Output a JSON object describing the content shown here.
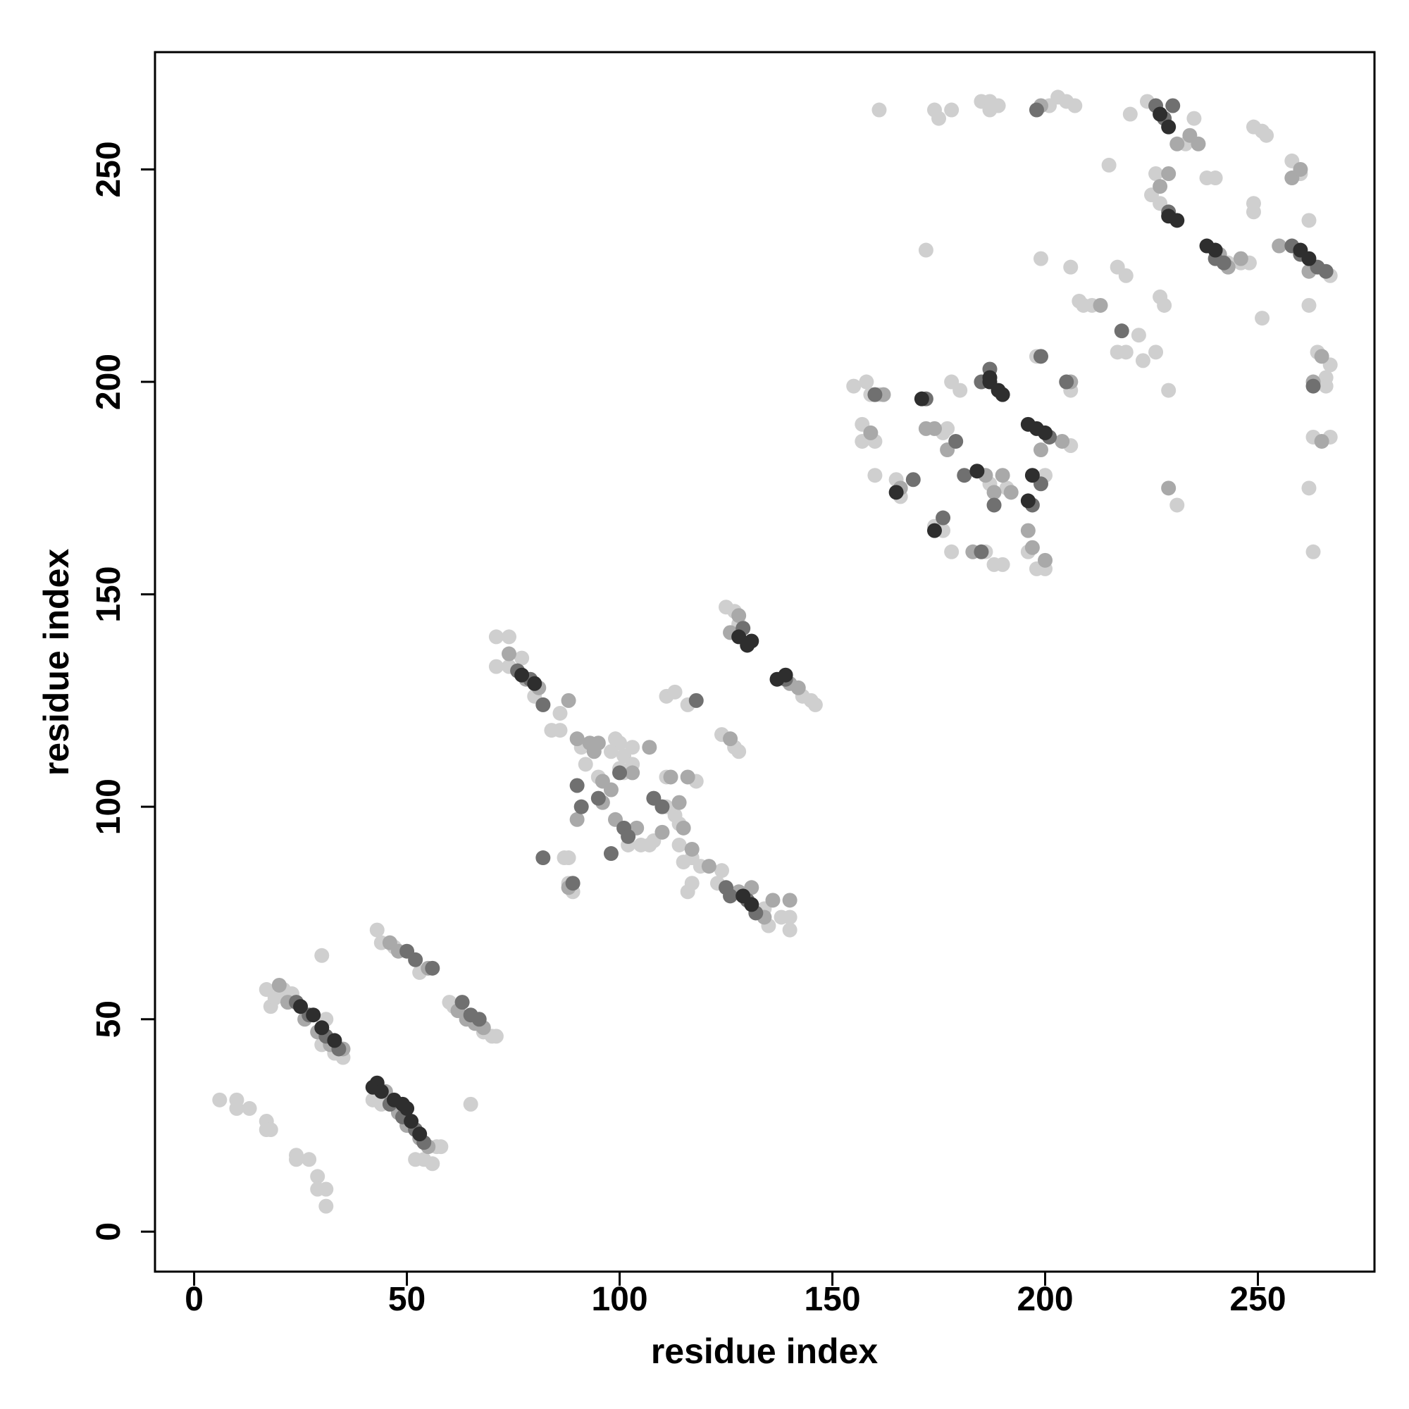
{
  "chart_data": {
    "type": "scatter",
    "x_label": "residue index",
    "y_label": "residue index",
    "xlim": [
      -9.2,
      277.4
    ],
    "ylim": [
      -9.4,
      277.6
    ],
    "xticks": [
      0,
      50,
      100,
      150,
      200,
      250
    ],
    "yticks": [
      0,
      50,
      100,
      150,
      200,
      250
    ],
    "series": [
      {
        "color": "#cfcfcf",
        "x": [
          17,
          18,
          19,
          21,
          23,
          30,
          31,
          33,
          35,
          30,
          6,
          10,
          10,
          13,
          17,
          17,
          18,
          24,
          24,
          27,
          29,
          29,
          31,
          31,
          42,
          44,
          52,
          54,
          56,
          57,
          58,
          65,
          43,
          44,
          47,
          53,
          70,
          71,
          68,
          60,
          61,
          71,
          71,
          74,
          74,
          77,
          80,
          82,
          84,
          86,
          86,
          88,
          88,
          89,
          91,
          92,
          95,
          98,
          100,
          100,
          101,
          101,
          103,
          103,
          107,
          108,
          111,
          111,
          113,
          114,
          115,
          116,
          117,
          111,
          113,
          116,
          124,
          127,
          128,
          124,
          123,
          134,
          135,
          138,
          140,
          140,
          143,
          145,
          146,
          125,
          127,
          128,
          118,
          114,
          119,
          117,
          87,
          99,
          102,
          105,
          155,
          158,
          159,
          157,
          157,
          160,
          161,
          160,
          165,
          166,
          172,
          174,
          176,
          178,
          178,
          177,
          176,
          180,
          161,
          174,
          175,
          178,
          185,
          187,
          187,
          186,
          188,
          190,
          187,
          191,
          196,
          198,
          199,
          200,
          200,
          198,
          201,
          203,
          205,
          207,
          206,
          206,
          206,
          206,
          208,
          209,
          211,
          215,
          217,
          217,
          219,
          219,
          220,
          222,
          224,
          223,
          225,
          226,
          227,
          228,
          229,
          231,
          233,
          235,
          238,
          240,
          243,
          246,
          248,
          249,
          251,
          252,
          251,
          258,
          260,
          262,
          262,
          262,
          263,
          263,
          264,
          266,
          267,
          267,
          266,
          267,
          249,
          249,
          189,
          226,
          227
        ],
        "y": [
          57,
          53,
          55,
          57,
          56,
          44,
          50,
          42,
          41,
          65,
          31,
          31,
          29,
          29,
          26,
          24,
          24,
          18,
          17,
          17,
          13,
          10,
          10,
          6,
          31,
          30,
          17,
          17,
          16,
          20,
          20,
          30,
          71,
          68,
          67,
          61,
          46,
          46,
          47,
          54,
          53,
          140,
          133,
          140,
          133,
          135,
          126,
          124,
          118,
          122,
          118,
          88,
          82,
          80,
          114,
          110,
          107,
          113,
          115,
          109,
          112,
          108,
          114,
          110,
          91,
          92,
          107,
          100,
          98,
          96,
          87,
          80,
          82,
          126,
          127,
          124,
          117,
          114,
          113,
          85,
          82,
          76,
          72,
          74,
          71,
          74,
          126,
          125,
          124,
          147,
          146,
          143,
          106,
          91,
          86,
          88,
          88,
          116,
          91,
          91,
          199,
          200,
          197,
          190,
          186,
          186,
          197,
          178,
          177,
          173,
          231,
          166,
          165,
          200,
          160,
          189,
          188,
          198,
          264,
          264,
          262,
          264,
          266,
          266,
          264,
          160,
          157,
          157,
          176,
          175,
          160,
          156,
          229,
          178,
          156,
          206,
          265,
          267,
          266,
          265,
          200,
          198,
          185,
          227,
          219,
          218,
          218,
          251,
          227,
          207,
          207,
          225,
          263,
          211,
          266,
          205,
          244,
          249,
          242,
          218,
          198,
          171,
          256,
          262,
          248,
          248,
          228,
          228,
          228,
          260,
          259,
          258,
          215,
          252,
          249,
          238,
          218,
          175,
          160,
          187,
          207,
          201,
          204,
          187,
          199,
          225,
          240,
          242,
          265,
          207,
          220
        ]
      },
      {
        "color": "#a9a9a9",
        "x": [
          20,
          22,
          26,
          29,
          32,
          35,
          45,
          48,
          50,
          53,
          55,
          46,
          48,
          55,
          62,
          64,
          66,
          68,
          74,
          78,
          81,
          88,
          90,
          93,
          94,
          90,
          95,
          98,
          99,
          103,
          104,
          107,
          110,
          112,
          116,
          114,
          115,
          117,
          121,
          126,
          128,
          131,
          134,
          136,
          140,
          126,
          128,
          140,
          142,
          88,
          96,
          96,
          159,
          162,
          166,
          172,
          174,
          177,
          183,
          186,
          188,
          190,
          192,
          196,
          197,
          200,
          199,
          199,
          204,
          206,
          213,
          227,
          229,
          231,
          234,
          236,
          241,
          243,
          255,
          258,
          260,
          262,
          263,
          265,
          265,
          246,
          229
        ],
        "y": [
          58,
          54,
          50,
          47,
          44,
          43,
          33,
          28,
          25,
          22,
          20,
          68,
          66,
          62,
          52,
          50,
          49,
          48,
          136,
          130,
          128,
          125,
          116,
          115,
          113,
          97,
          115,
          104,
          97,
          108,
          95,
          114,
          94,
          107,
          107,
          101,
          95,
          90,
          86,
          116,
          80,
          81,
          74,
          78,
          78,
          141,
          145,
          129,
          128,
          81,
          101,
          106,
          188,
          197,
          175,
          189,
          189,
          184,
          160,
          178,
          174,
          178,
          174,
          165,
          161,
          158,
          184,
          265,
          186,
          200,
          218,
          246,
          249,
          256,
          258,
          256,
          230,
          227,
          232,
          248,
          250,
          226,
          200,
          206,
          186,
          229,
          175
        ]
      },
      {
        "color": "#707070",
        "x": [
          24,
          27,
          31,
          34,
          46,
          49,
          52,
          54,
          50,
          52,
          56,
          63,
          65,
          67,
          76,
          79,
          82,
          89,
          90,
          91,
          95,
          98,
          100,
          101,
          102,
          108,
          110,
          125,
          126,
          130,
          132,
          129,
          139,
          82,
          118,
          160,
          169,
          172,
          176,
          179,
          181,
          185,
          187,
          188,
          197,
          199,
          199,
          201,
          205,
          218,
          226,
          228,
          229,
          230,
          240,
          242,
          258,
          260,
          264,
          266,
          263,
          198,
          185
        ],
        "y": [
          54,
          51,
          46,
          43,
          30,
          27,
          24,
          21,
          66,
          64,
          62,
          54,
          51,
          50,
          132,
          130,
          124,
          82,
          105,
          100,
          102,
          89,
          108,
          95,
          93,
          102,
          100,
          81,
          79,
          78,
          75,
          142,
          130,
          88,
          125,
          197,
          177,
          196,
          168,
          186,
          178,
          200,
          203,
          171,
          171,
          176,
          206,
          187,
          200,
          212,
          265,
          262,
          240,
          265,
          229,
          228,
          232,
          230,
          227,
          226,
          199,
          264,
          160
        ]
      },
      {
        "color": "#2e2e2e",
        "x": [
          25,
          28,
          30,
          33,
          42,
          43,
          44,
          47,
          50,
          51,
          53,
          49,
          77,
          80,
          128,
          130,
          131,
          137,
          139,
          129,
          131,
          165,
          171,
          174,
          184,
          187,
          189,
          190,
          196,
          198,
          200,
          197,
          227,
          229,
          231,
          229,
          238,
          240,
          260,
          262,
          196,
          187
        ],
        "y": [
          53,
          51,
          48,
          45,
          34,
          35,
          33,
          31,
          29,
          26,
          23,
          30,
          131,
          129,
          140,
          138,
          139,
          130,
          131,
          79,
          77,
          174,
          196,
          165,
          179,
          200,
          198,
          197,
          190,
          189,
          188,
          178,
          263,
          260,
          238,
          239,
          232,
          231,
          231,
          229,
          172,
          201
        ]
      }
    ]
  }
}
